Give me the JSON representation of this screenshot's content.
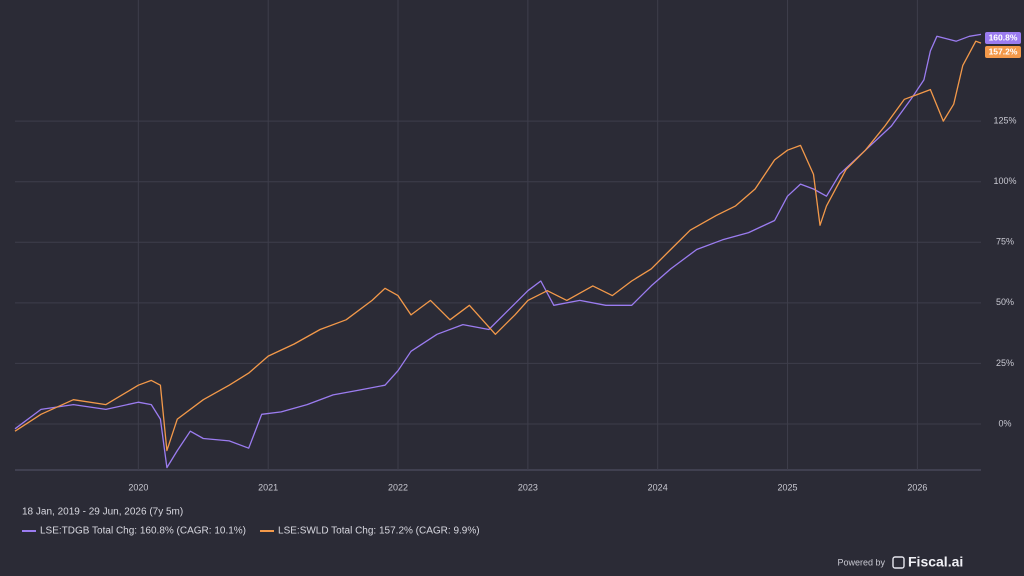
{
  "chart_data": {
    "type": "line",
    "subtitle": "18 Jan, 2019 - 29 Jun, 2026 (7y 5m)",
    "footer": {
      "powered_by": "Powered by",
      "brand": "Fiscal.ai"
    },
    "xlim": [
      2019.05,
      2026.49
    ],
    "xticks": [
      2020,
      2021,
      2022,
      2023,
      2024,
      2025,
      2026
    ],
    "ylim": [
      -19,
      175
    ],
    "yticks": [
      {
        "value": 0,
        "label": "0%"
      },
      {
        "value": 25,
        "label": "25%"
      },
      {
        "value": 50,
        "label": "50%"
      },
      {
        "value": 75,
        "label": "75%"
      },
      {
        "value": 100,
        "label": "100%"
      },
      {
        "value": 125,
        "label": "125%"
      }
    ],
    "grid": true,
    "series": [
      {
        "name": "LSE:TDGB Total Chg: 160.8% (CAGR: 10.1%)",
        "color": "#9b7cf0",
        "end_label": "160.8%",
        "x": [
          2019.05,
          2019.25,
          2019.5,
          2019.75,
          2020.0,
          2020.1,
          2020.17,
          2020.22,
          2020.3,
          2020.4,
          2020.5,
          2020.7,
          2020.85,
          2020.95,
          2021.1,
          2021.3,
          2021.5,
          2021.7,
          2021.9,
          2022.0,
          2022.1,
          2022.3,
          2022.5,
          2022.7,
          2022.85,
          2023.0,
          2023.1,
          2023.2,
          2023.4,
          2023.6,
          2023.8,
          2023.95,
          2024.1,
          2024.3,
          2024.5,
          2024.7,
          2024.9,
          2025.0,
          2025.1,
          2025.2,
          2025.3,
          2025.4,
          2025.6,
          2025.8,
          2025.95,
          2026.05,
          2026.1,
          2026.15,
          2026.3,
          2026.4,
          2026.49
        ],
        "values": [
          -2,
          6,
          8,
          6,
          9,
          8,
          2,
          -18,
          -11,
          -3,
          -6,
          -7,
          -10,
          4,
          5,
          8,
          12,
          14,
          16,
          22,
          30,
          37,
          41,
          39,
          47,
          55,
          59,
          49,
          51,
          49,
          49,
          57,
          64,
          72,
          76,
          79,
          84,
          94,
          99,
          97,
          94,
          103,
          113,
          123,
          134,
          142,
          154,
          160,
          158,
          160,
          160.8
        ]
      },
      {
        "name": "LSE:SWLD Total Chg: 157.2% (CAGR: 9.9%)",
        "color": "#f3994a",
        "end_label": "157.2%",
        "x": [
          2019.05,
          2019.25,
          2019.5,
          2019.75,
          2020.0,
          2020.1,
          2020.17,
          2020.22,
          2020.3,
          2020.5,
          2020.7,
          2020.85,
          2021.0,
          2021.2,
          2021.4,
          2021.6,
          2021.8,
          2021.9,
          2022.0,
          2022.1,
          2022.25,
          2022.4,
          2022.55,
          2022.75,
          2022.9,
          2023.0,
          2023.15,
          2023.3,
          2023.5,
          2023.65,
          2023.8,
          2023.95,
          2024.1,
          2024.25,
          2024.45,
          2024.6,
          2024.75,
          2024.9,
          2025.0,
          2025.1,
          2025.2,
          2025.25,
          2025.3,
          2025.45,
          2025.6,
          2025.75,
          2025.9,
          2026.0,
          2026.1,
          2026.2,
          2026.28,
          2026.35,
          2026.45,
          2026.49
        ],
        "values": [
          -3,
          4,
          10,
          8,
          16,
          18,
          16,
          -11,
          2,
          10,
          16,
          21,
          28,
          33,
          39,
          43,
          51,
          56,
          53,
          45,
          51,
          43,
          49,
          37,
          45,
          51,
          55,
          51,
          57,
          53,
          59,
          64,
          72,
          80,
          86,
          90,
          97,
          109,
          113,
          115,
          103,
          82,
          90,
          105,
          113,
          123,
          134,
          136,
          138,
          125,
          132,
          148,
          158,
          157.2
        ]
      }
    ]
  }
}
